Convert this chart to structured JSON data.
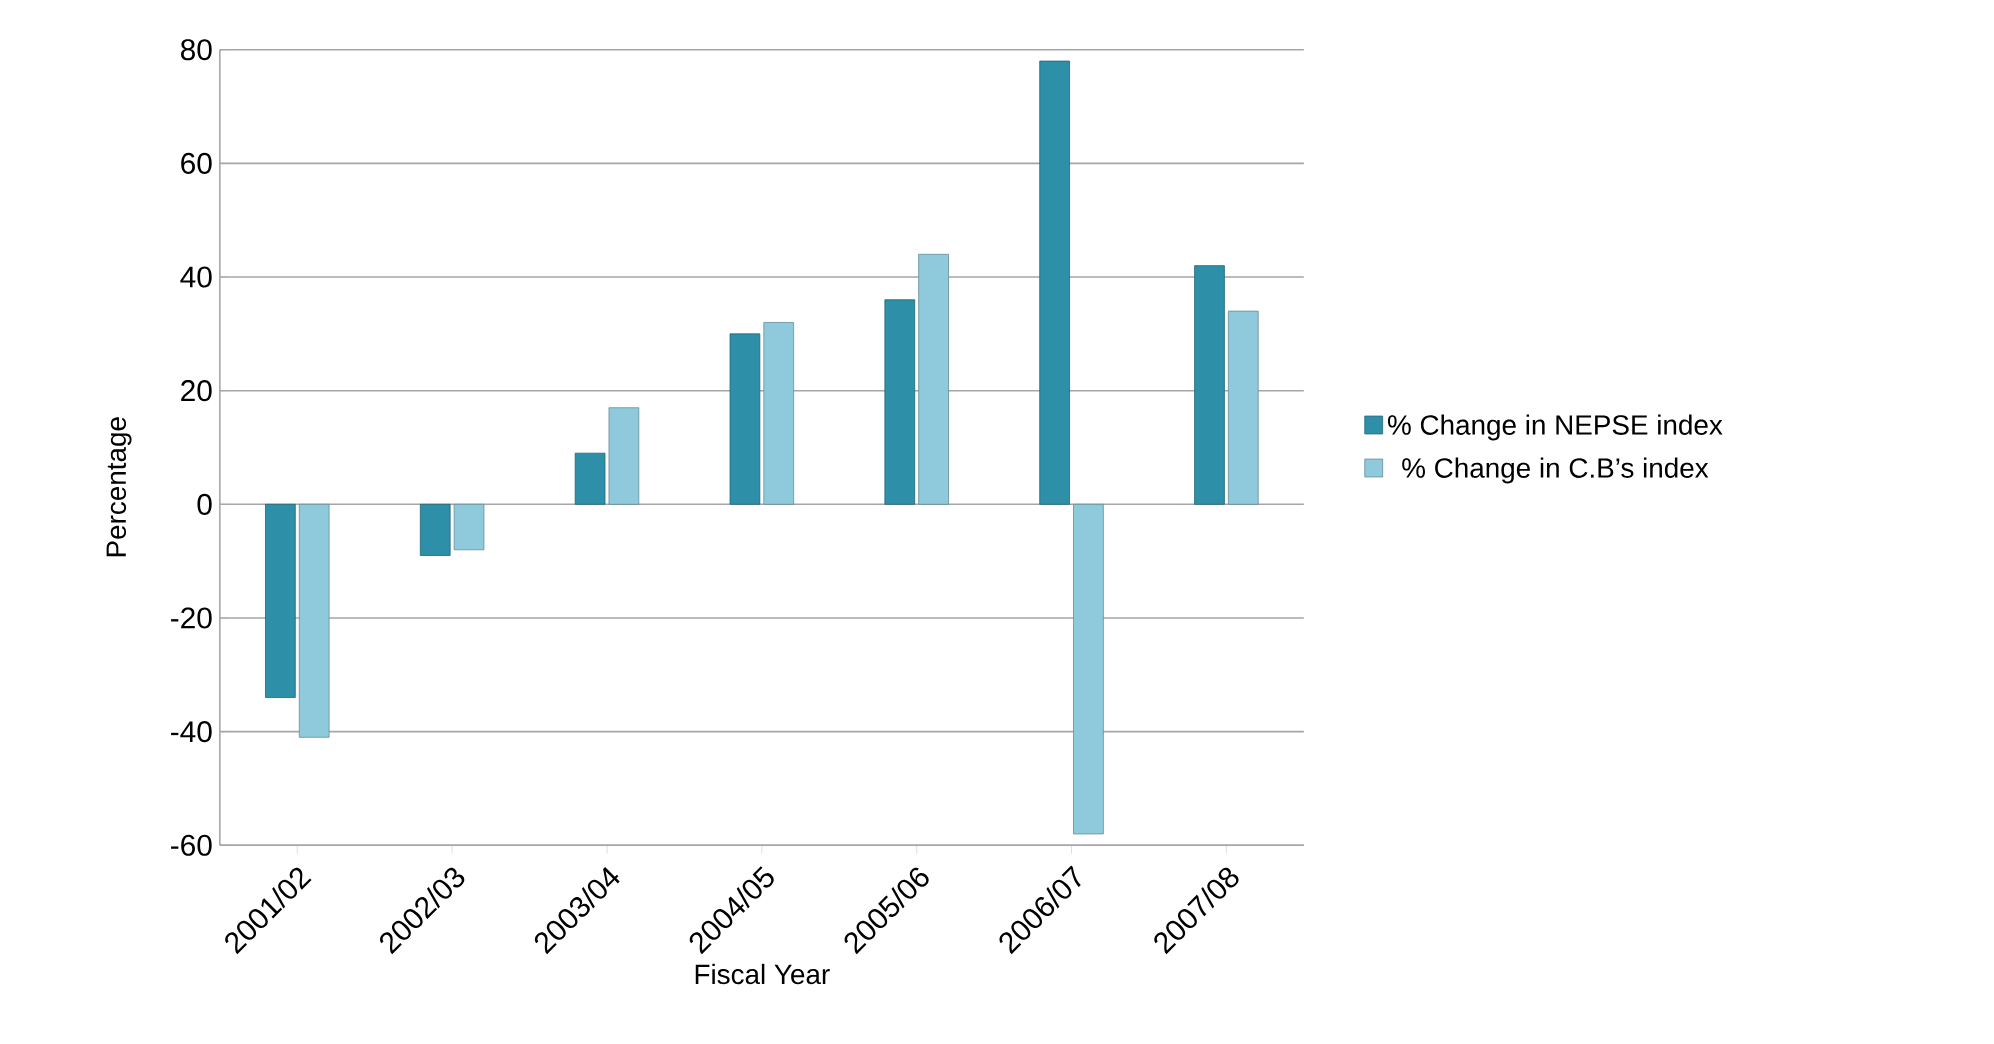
{
  "chart_data": {
    "type": "bar",
    "xlabel": "Fiscal Year",
    "ylabel": "Percentage",
    "categories": [
      "2001/02",
      "2002/03",
      "2003/04",
      "2004/05",
      "2005/06",
      "2006/07",
      "2007/08"
    ],
    "series": [
      {
        "name": "% Change in NEPSE index",
        "color": "#2e8fa8",
        "values": [
          -34,
          -9,
          9,
          30,
          36,
          78,
          42
        ]
      },
      {
        "name": "% Change in C.B’s index",
        "color": "#8ecadc",
        "values": [
          -41,
          -8,
          17,
          32,
          44,
          -58,
          34
        ]
      }
    ],
    "ylim": [
      -60,
      80
    ],
    "yticks": [
      -60,
      -40,
      -20,
      0,
      20,
      40,
      60,
      80
    ],
    "grid": "y",
    "legend": "right"
  }
}
